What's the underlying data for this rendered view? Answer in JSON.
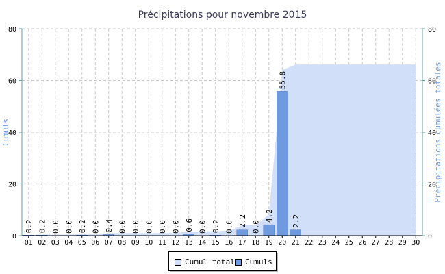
{
  "chart_data": {
    "type": "bar",
    "title": "Précipitations pour novembre 2015",
    "ylabel": "Cumuls",
    "y2label": "Précipitations cumulées totales",
    "ylim": [
      0,
      80
    ],
    "y2lim": [
      0,
      80
    ],
    "yticks": [
      "0",
      "20",
      "40",
      "60",
      "80"
    ],
    "categories": [
      "01",
      "02",
      "03",
      "04",
      "05",
      "06",
      "07",
      "08",
      "09",
      "10",
      "11",
      "12",
      "13",
      "14",
      "15",
      "16",
      "17",
      "18",
      "19",
      "20",
      "21",
      "22",
      "23",
      "24",
      "25",
      "26",
      "27",
      "28",
      "29",
      "30"
    ],
    "series": [
      {
        "name": "Cumuls",
        "type": "bar",
        "color": "#6f9ae0",
        "values": [
          0.2,
          0.2,
          0.0,
          0.0,
          0.2,
          0.0,
          0.4,
          0.0,
          0.0,
          0.0,
          0.0,
          0.0,
          0.6,
          0.0,
          0.2,
          0.0,
          2.2,
          0.0,
          4.2,
          55.8,
          2.2,
          null,
          null,
          null,
          null,
          null,
          null,
          null,
          null,
          null
        ],
        "labels": [
          "0.2",
          "0.2",
          "0.0",
          "0.0",
          "0.2",
          "0.0",
          "0.4",
          "0.0",
          "0.0",
          "0.0",
          "0.0",
          "0.0",
          "0.6",
          "0.0",
          "0.2",
          "0.0",
          "2.2",
          "0.0",
          "4.2",
          "55.8",
          "2.2",
          "",
          "",
          "",
          "",
          "",
          "",
          "",
          "",
          ""
        ]
      },
      {
        "name": "Cumul total",
        "type": "area",
        "axis": "right",
        "color": "#d2dff8",
        "values": [
          0.2,
          0.4,
          0.4,
          0.4,
          0.6,
          0.6,
          1.0,
          1.0,
          1.0,
          1.0,
          1.0,
          1.0,
          1.6,
          1.6,
          1.8,
          1.8,
          4.0,
          4.0,
          8.2,
          64.0,
          66.2,
          66.2,
          66.2,
          66.2,
          66.2,
          66.2,
          66.2,
          66.2,
          66.2,
          66.2
        ]
      }
    ],
    "grid": true,
    "legend_position": "bottom-center"
  },
  "colors": {
    "axis": "#5fa0a0",
    "grid": "#c8c8c8",
    "ylabel": "#6f9ae0",
    "title": "#3a3a5a"
  }
}
